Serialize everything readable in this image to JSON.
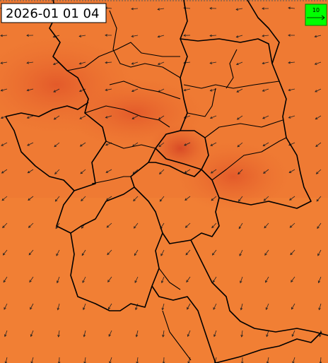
{
  "map": {
    "timestamp": "2026-01 01 04",
    "legend": {
      "label": "10"
    }
  }
}
